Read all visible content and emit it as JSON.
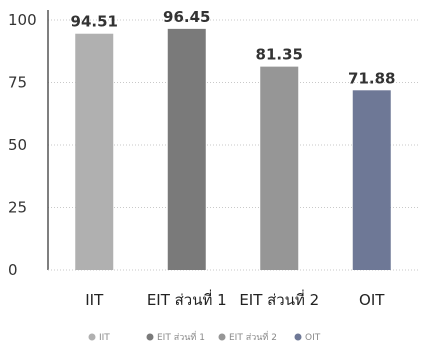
{
  "chart_data": {
    "type": "bar",
    "categories": [
      "IIT",
      "EIT ส่วนที่ 1",
      "EIT ส่วนที่ 2",
      "OIT"
    ],
    "values": [
      94.51,
      96.45,
      81.35,
      71.88
    ],
    "value_labels": [
      "94.51",
      "96.45",
      "81.35",
      "71.88"
    ],
    "ylim": [
      0,
      100
    ],
    "yticks": [
      0,
      25,
      50,
      75,
      100
    ],
    "grid": true,
    "legend_position": "bottom",
    "legend": [
      "IIT",
      "EIT ส่วนที่ 1",
      "EIT ส่วนที่ 2",
      "OIT"
    ],
    "colors": [
      "#b0b0b0",
      "#7a7a7a",
      "#969696",
      "#6e7896"
    ]
  }
}
